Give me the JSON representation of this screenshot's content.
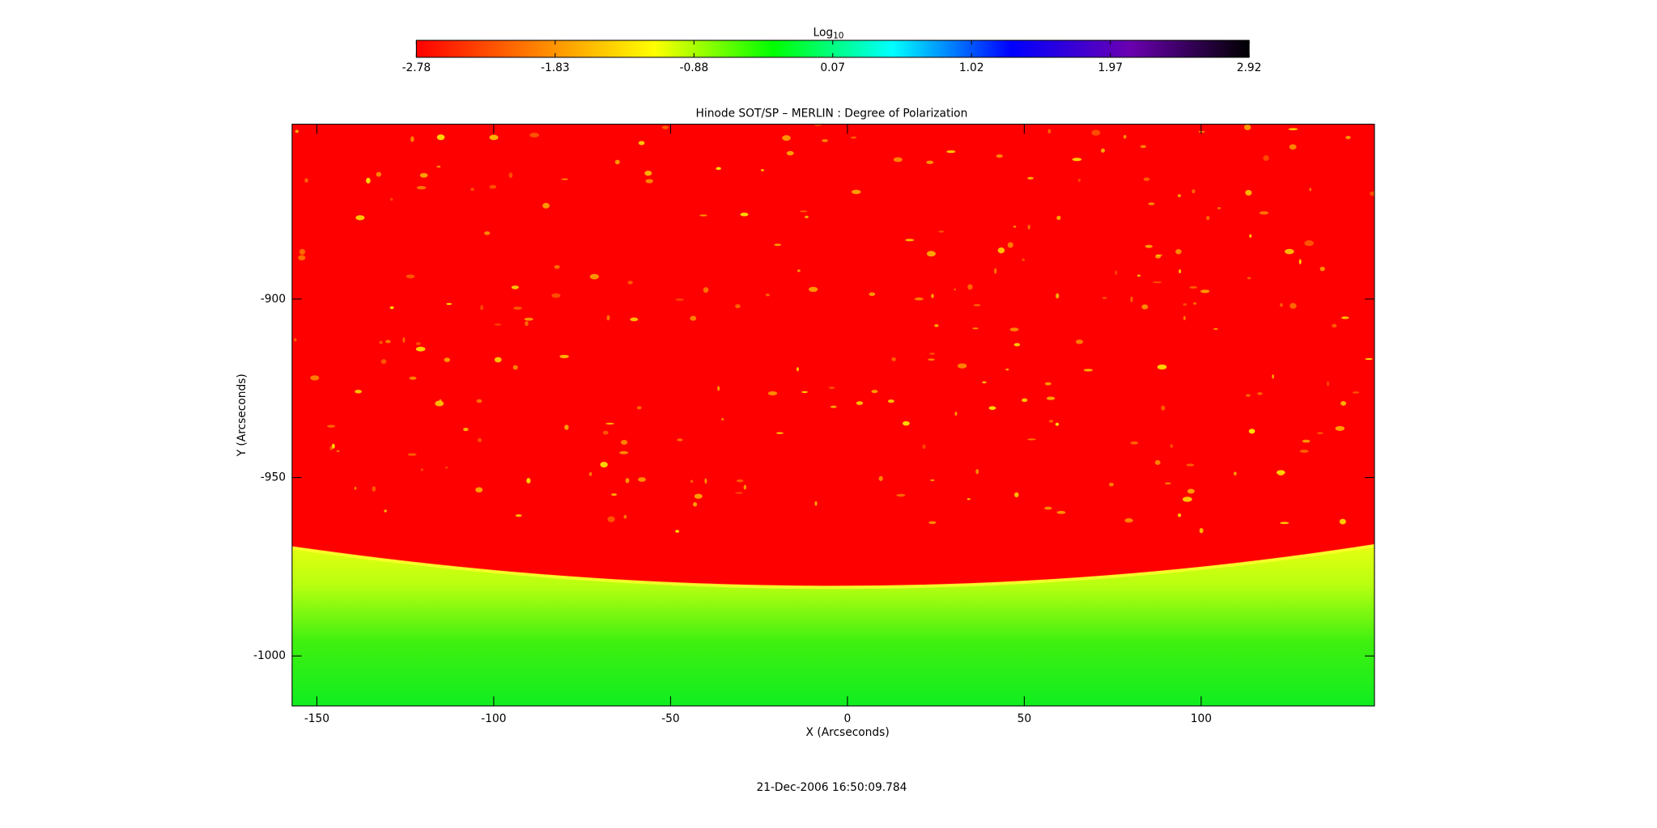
{
  "chart_data": {
    "type": "image",
    "title": "Hinode SOT/SP – MERLIN : Degree of Polarization",
    "x_label": "X (Arcseconds)",
    "y_label": "Y (Arcseconds)",
    "xlim": [
      -157,
      149
    ],
    "xticks": [
      -150,
      -100,
      -50,
      0,
      50,
      100
    ],
    "ylim": [
      -1014,
      -851
    ],
    "yticks": [
      -900,
      -950,
      -1000
    ],
    "colorbar": {
      "label": {
        "base": "Log",
        "subscript": "10"
      },
      "lim": [
        -2.78,
        2.92
      ],
      "ticks": [
        -2.78,
        -1.83,
        -0.88,
        0.07,
        1.02,
        1.97,
        2.92
      ],
      "colormap": [
        "#ff0000",
        "#ff8000",
        "#ffff00",
        "#00ff00",
        "#00ffff",
        "#0000ff",
        "#6a00b0",
        "#000000"
      ]
    },
    "footer": "21-Dec-2006 16:50:09.784"
  }
}
